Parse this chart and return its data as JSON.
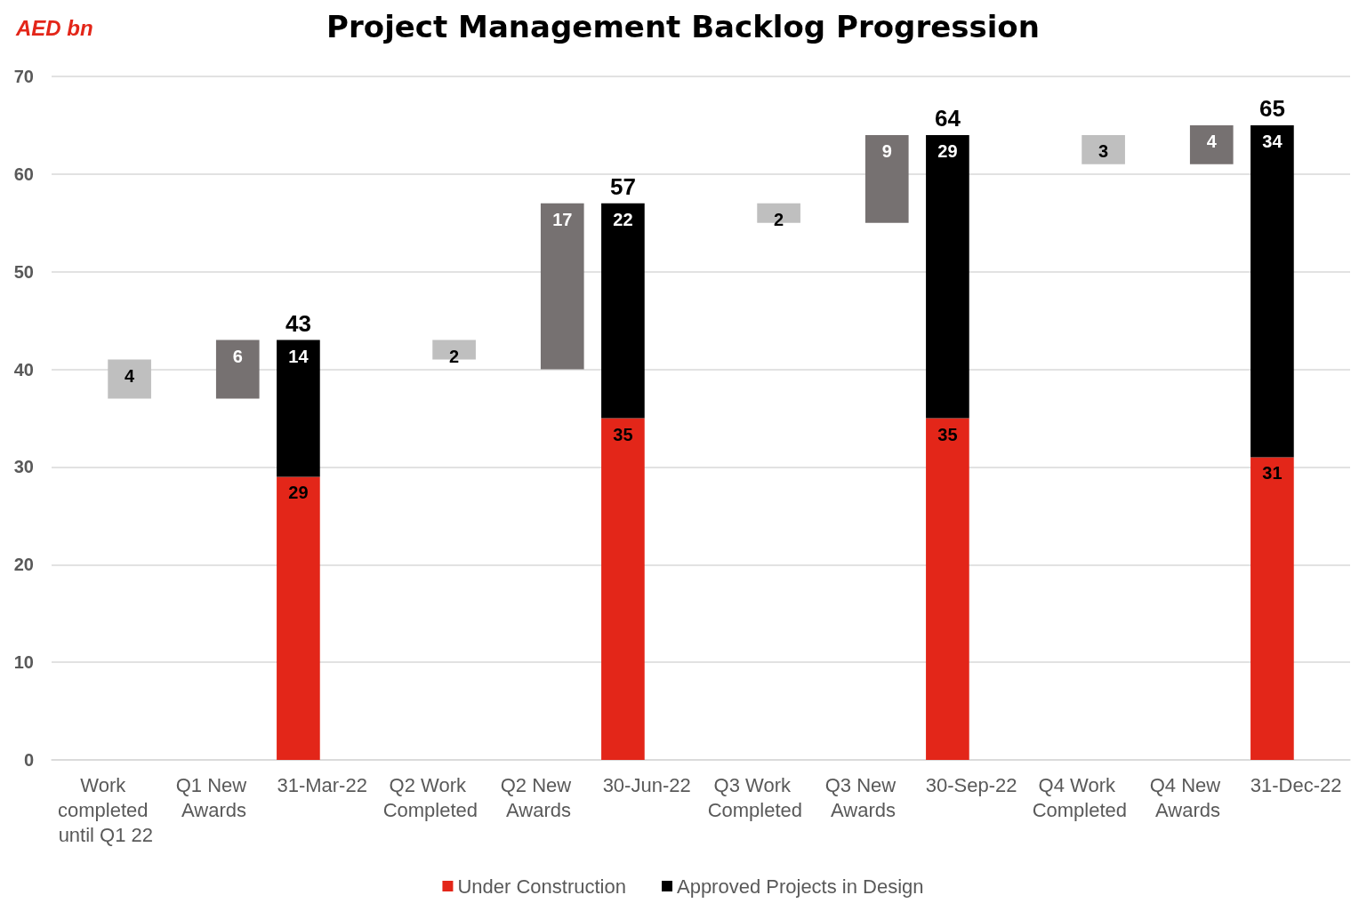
{
  "chart_data": {
    "type": "bar",
    "title": "Project Management Backlog Progression",
    "ylabel": "AED bn",
    "categories": [
      "Work completed until Q1 22",
      "Q1 New Awards",
      "31-Mar-22",
      "Q2 Work Completed",
      "Q2 New Awards",
      "30-Jun-22",
      "Q3 Work Completed",
      "Q3 New Awards",
      "30-Sep-22",
      "Q4 Work Completed",
      "Q4 New Awards",
      "31-Dec-22"
    ],
    "stacked": true,
    "series": [
      {
        "name": "Under Construction",
        "color": "#e32619",
        "values": [
          null,
          null,
          29,
          null,
          null,
          35,
          null,
          null,
          35,
          null,
          null,
          31
        ]
      },
      {
        "name": "Approved Projects in Design",
        "color": "#000000",
        "values": [
          null,
          null,
          14,
          null,
          null,
          22,
          null,
          null,
          29,
          null,
          null,
          34
        ]
      },
      {
        "colors": [
          "#bfbfbf",
          "#767171",
          null,
          "#bfbfbf",
          "#767171",
          null,
          "#bfbfbf",
          "#767171",
          null,
          "#bfbfbf",
          "#767171",
          null
        ],
        "base": [
          37,
          37,
          null,
          41,
          40,
          null,
          55,
          55,
          null,
          61,
          61,
          null
        ],
        "values": [
          4,
          6,
          null,
          2,
          17,
          null,
          2,
          9,
          null,
          3,
          4,
          null
        ]
      }
    ],
    "totals": [
      null,
      null,
      "43",
      null,
      null,
      "57",
      null,
      null,
      "64",
      null,
      null,
      "65"
    ],
    "ylim": [
      0,
      70
    ],
    "yticks": [
      0,
      10,
      20,
      30,
      40,
      50,
      60,
      70
    ],
    "grid": "y",
    "legend": "bottom",
    "data_labels": true
  }
}
